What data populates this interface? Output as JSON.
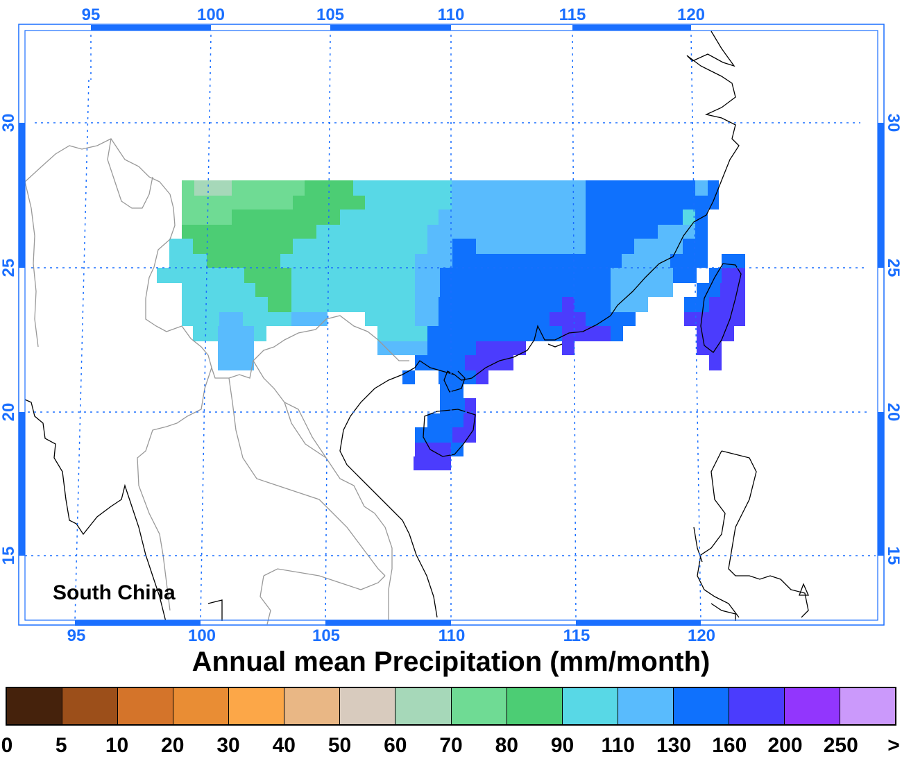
{
  "map": {
    "region_label": "South China",
    "lon_ticks": [
      "95",
      "100",
      "105",
      "110",
      "115",
      "120"
    ],
    "lat_ticks": [
      "30",
      "25",
      "20",
      "15"
    ],
    "lon_range": [
      92.7,
      127.2
    ],
    "lat_range": [
      12.6,
      33.4
    ],
    "data_extent": {
      "lon": [
        99.5,
        121.5
      ],
      "lat": [
        18.0,
        28.0
      ]
    },
    "grid_style": "dotted blue",
    "field": "annual mean precipitation, heavier near the south coast and Taiwan, lighter on the western Yunnan plateau"
  },
  "title": "Annual mean Precipitation (mm/month)",
  "colorbar": {
    "colors": [
      "#45220c",
      "#9c4f1a",
      "#d4742a",
      "#e98d34",
      "#fca748",
      "#e9b785",
      "#d8cbbe",
      "#a6d8b9",
      "#6fdb94",
      "#4ccd74",
      "#58d8e6",
      "#59bbfd",
      "#0f71fd",
      "#4b3cfd",
      "#9236fd",
      "#cb99fb"
    ],
    "labels": [
      "0",
      "5",
      "10",
      "20",
      "30",
      "40",
      "50",
      "60",
      "70",
      "80",
      "90",
      "110",
      "130",
      "160",
      "200",
      "250",
      ">"
    ]
  }
}
